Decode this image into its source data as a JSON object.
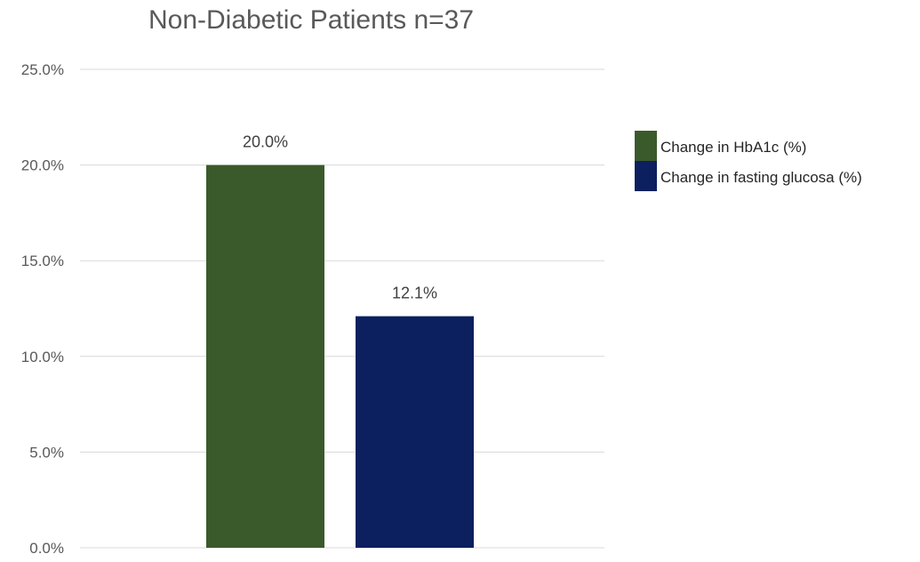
{
  "chart_data": {
    "type": "bar",
    "title": "Non-Diabetic Patients n=37",
    "xlabel": "",
    "ylabel": "",
    "ylim": [
      0,
      25
    ],
    "yticks": [
      "0.0%",
      "5.0%",
      "10.0%",
      "15.0%",
      "20.0%",
      "25.0%"
    ],
    "ytick_values": [
      0,
      5,
      10,
      15,
      20,
      25
    ],
    "grid": true,
    "legend_position": "right",
    "series": [
      {
        "name": "Change in HbA1c (%)",
        "value": 20.0,
        "label": "20.0%",
        "color": "#3b5a2b"
      },
      {
        "name": "Change in fasting glucosa (%)",
        "value": 12.1,
        "label": "12.1%",
        "color": "#0c1f5e"
      }
    ]
  }
}
